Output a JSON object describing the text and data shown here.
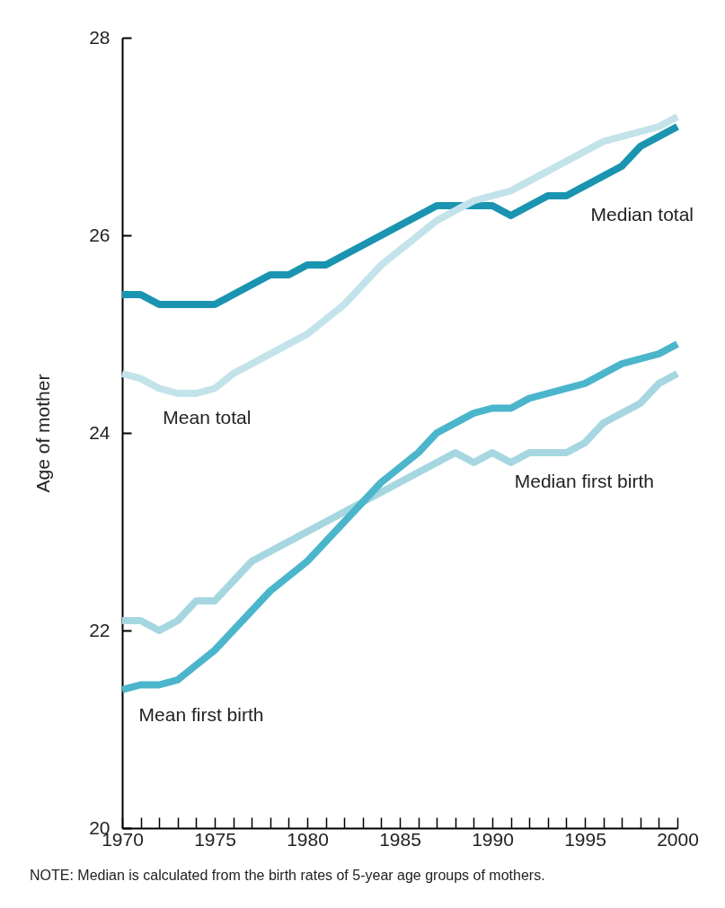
{
  "chart_data": {
    "type": "line",
    "ylabel": "Age of mother",
    "annotations": [
      "NOTE: Median is calculated from the birth rates of 5-year age groups of mothers."
    ],
    "x": [
      1970,
      1971,
      1972,
      1973,
      1974,
      1975,
      1976,
      1977,
      1978,
      1979,
      1980,
      1981,
      1982,
      1983,
      1984,
      1985,
      1986,
      1987,
      1988,
      1989,
      1990,
      1991,
      1992,
      1993,
      1994,
      1995,
      1996,
      1997,
      1998,
      1999,
      2000
    ],
    "series": [
      {
        "name": "Median total",
        "color": "#1a94b0",
        "values": [
          25.4,
          25.4,
          25.3,
          25.3,
          25.3,
          25.3,
          25.4,
          25.5,
          25.6,
          25.6,
          25.7,
          25.7,
          25.8,
          25.9,
          26.0,
          26.1,
          26.2,
          26.3,
          26.3,
          26.3,
          26.3,
          26.2,
          26.3,
          26.4,
          26.4,
          26.5,
          26.6,
          26.7,
          26.9,
          27.0,
          27.1
        ]
      },
      {
        "name": "Mean total",
        "color": "#c3e3ea",
        "values": [
          24.6,
          24.55,
          24.45,
          24.4,
          24.4,
          24.45,
          24.6,
          24.7,
          24.8,
          24.9,
          25.0,
          25.15,
          25.3,
          25.5,
          25.7,
          25.85,
          26.0,
          26.15,
          26.25,
          26.35,
          26.4,
          26.45,
          26.55,
          26.65,
          26.75,
          26.85,
          26.95,
          27.0,
          27.05,
          27.1,
          27.2
        ]
      },
      {
        "name": "Median first birth",
        "color": "#a6d7e0",
        "values": [
          22.1,
          22.1,
          22.0,
          22.1,
          22.3,
          22.3,
          22.5,
          22.7,
          22.8,
          22.9,
          23.0,
          23.1,
          23.2,
          23.3,
          23.4,
          23.5,
          23.6,
          23.7,
          23.8,
          23.7,
          23.8,
          23.7,
          23.8,
          23.8,
          23.8,
          23.9,
          24.1,
          24.2,
          24.3,
          24.5,
          24.6
        ]
      },
      {
        "name": "Mean first birth",
        "color": "#4bb5cb",
        "values": [
          21.4,
          21.45,
          21.45,
          21.5,
          21.65,
          21.8,
          22.0,
          22.2,
          22.4,
          22.55,
          22.7,
          22.9,
          23.1,
          23.3,
          23.5,
          23.65,
          23.8,
          24.0,
          24.1,
          24.2,
          24.25,
          24.25,
          24.35,
          24.4,
          24.45,
          24.5,
          24.6,
          24.7,
          24.75,
          24.8,
          24.9
        ]
      }
    ],
    "xlim": [
      1970,
      2000
    ],
    "ylim": [
      20,
      28
    ],
    "xticks": [
      1970,
      {
        "value": 1971,
        "label": null
      },
      {
        "value": 1972,
        "label": null
      },
      {
        "value": 1973,
        "label": null
      },
      {
        "value": 1974,
        "label": null
      },
      1975,
      {
        "value": 1976,
        "label": null
      },
      {
        "value": 1977,
        "label": null
      },
      {
        "value": 1978,
        "label": null
      },
      {
        "value": 1979,
        "label": null
      },
      1980,
      {
        "value": 1981,
        "label": null
      },
      {
        "value": 1982,
        "label": null
      },
      {
        "value": 1983,
        "label": null
      },
      {
        "value": 1984,
        "label": null
      },
      1985,
      {
        "value": 1986,
        "label": null
      },
      {
        "value": 1987,
        "label": null
      },
      {
        "value": 1988,
        "label": null
      },
      {
        "value": 1989,
        "label": null
      },
      1990,
      {
        "value": 1991,
        "label": null
      },
      {
        "value": 1992,
        "label": null
      },
      {
        "value": 1993,
        "label": null
      },
      {
        "value": 1994,
        "label": null
      },
      1995,
      {
        "value": 1996,
        "label": null
      },
      {
        "value": 1997,
        "label": null
      },
      {
        "value": 1998,
        "label": null
      },
      {
        "value": 1999,
        "label": null
      },
      2000
    ],
    "yticks": [
      20,
      22,
      24,
      26,
      28
    ],
    "grid": false,
    "legend": false,
    "marker": "none",
    "line_style": "solid"
  }
}
